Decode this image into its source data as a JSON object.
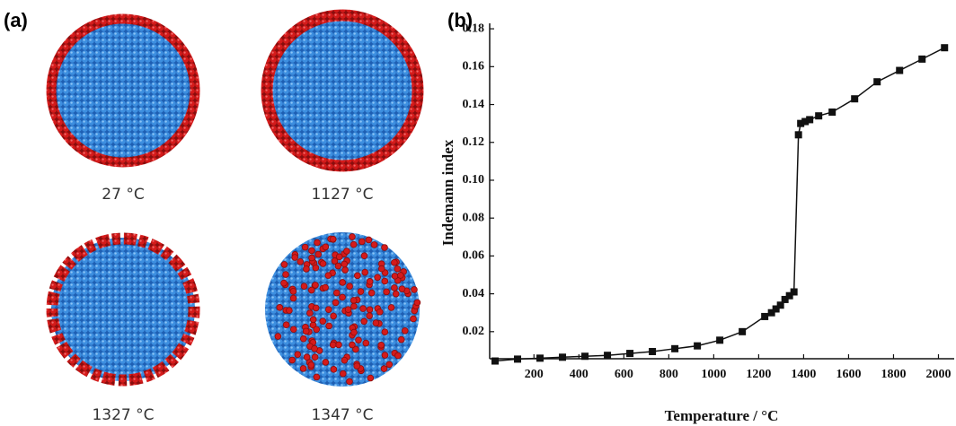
{
  "figure": {
    "panel_a_label": "(a)",
    "panel_b_label": "(b)",
    "captions": [
      "27 °C",
      "1127 °C",
      "1327 °C",
      "1347 °C"
    ]
  },
  "chart_data": {
    "type": "line",
    "x_label": "Temperature / °C",
    "y_label": "Indemann index",
    "x": [
      27,
      127,
      227,
      327,
      427,
      527,
      627,
      727,
      827,
      927,
      1027,
      1127,
      1227,
      1257,
      1277,
      1297,
      1317,
      1337,
      1357,
      1377,
      1387,
      1407,
      1427,
      1467,
      1527,
      1627,
      1727,
      1827,
      1927,
      2027
    ],
    "values": [
      0.0045,
      0.0055,
      0.006,
      0.0065,
      0.007,
      0.0075,
      0.0085,
      0.0095,
      0.011,
      0.0125,
      0.0155,
      0.02,
      0.028,
      0.03,
      0.032,
      0.034,
      0.037,
      0.039,
      0.041,
      0.124,
      0.13,
      0.131,
      0.132,
      0.134,
      0.136,
      0.143,
      0.152,
      0.158,
      0.164,
      0.17
    ],
    "color": "#111111",
    "marker": "square",
    "xlim": [
      3,
      2070
    ],
    "xticks": [
      200,
      400,
      600,
      800,
      1000,
      1200,
      1400,
      1600,
      1800,
      2000
    ],
    "ylim": [
      0.0057,
      0.181
    ],
    "yticks": [
      0.02,
      0.04,
      0.06,
      0.08,
      {
        "value": 0.1,
        "label": "0.10"
      },
      0.12,
      0.14,
      0.16,
      0.18
    ],
    "grid": false
  }
}
